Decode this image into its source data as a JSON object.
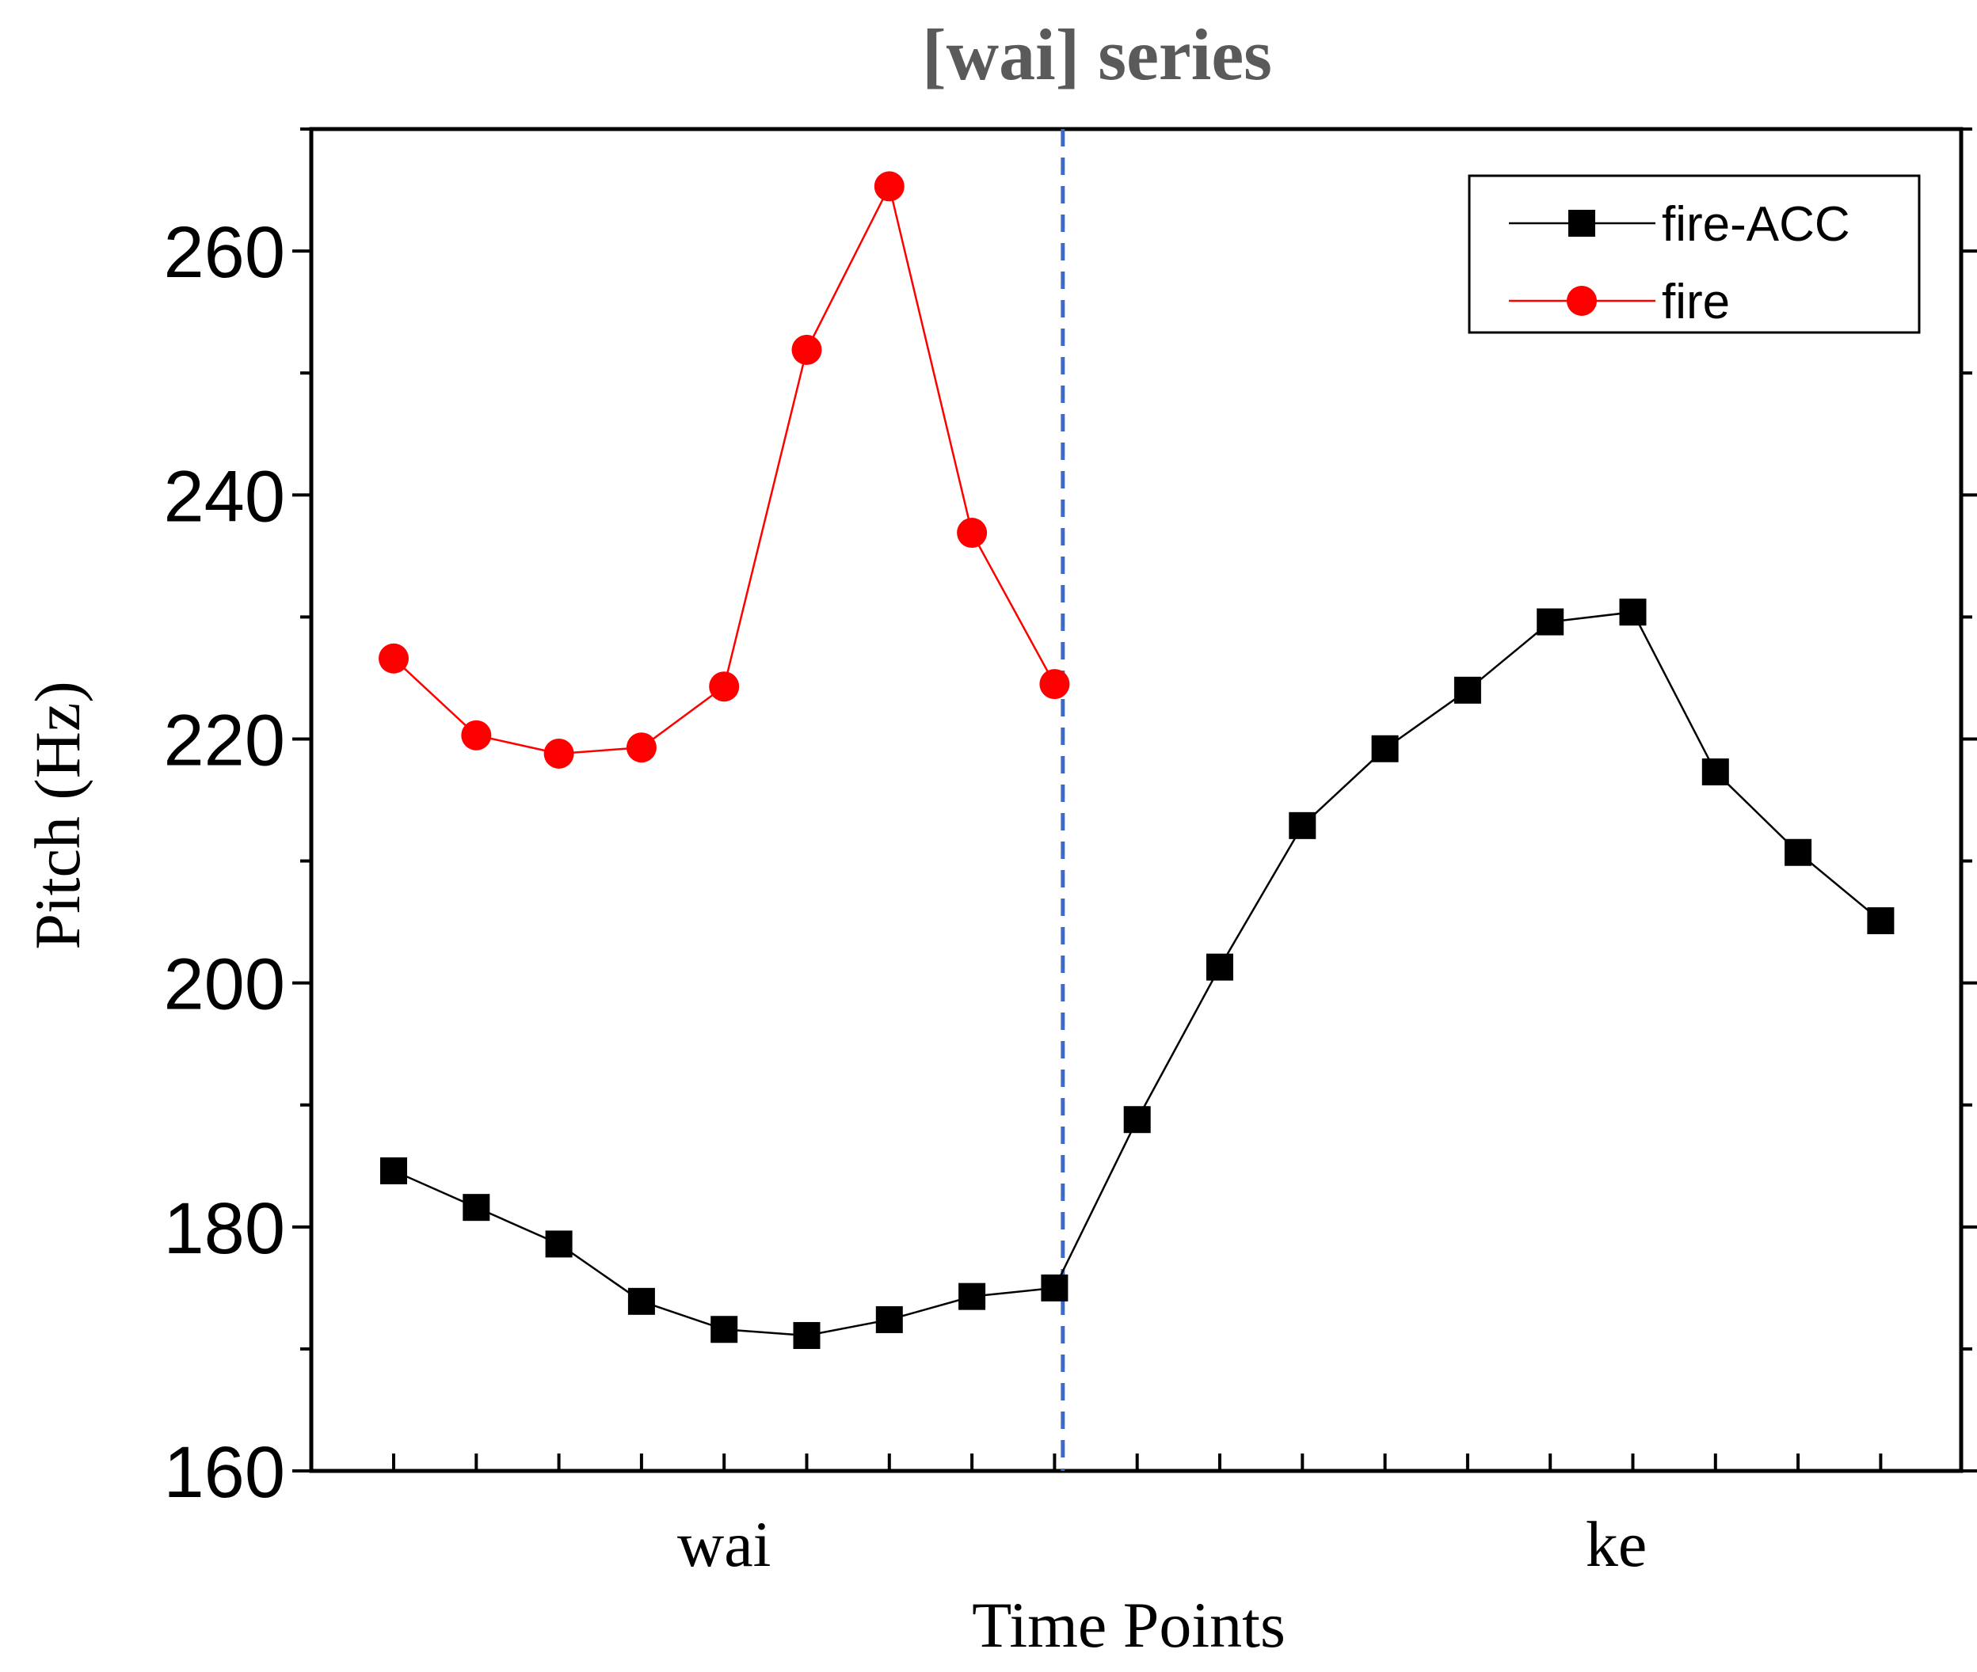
{
  "chart_data": {
    "type": "line",
    "title": "[wai] series",
    "xlabel": "Time Points",
    "ylabel": "Pitch (Hz)",
    "ylim": [
      160,
      270
    ],
    "yticks": [
      160,
      180,
      200,
      220,
      240,
      260
    ],
    "x_range": [
      0,
      20
    ],
    "x_categories": [
      {
        "label": "wai",
        "x": 5.0
      },
      {
        "label": "ke",
        "x": 15.8
      }
    ],
    "divider_x": 9.1,
    "grid": false,
    "legend_position": "top-right",
    "series": [
      {
        "name": "fire-ACC",
        "color": "#000000",
        "marker": "square",
        "x": [
          1,
          2,
          3,
          4,
          5,
          6,
          7,
          8,
          9,
          10,
          11,
          12,
          13,
          14,
          15,
          16,
          17,
          18,
          19
        ],
        "values": [
          184.6,
          181.6,
          178.6,
          173.9,
          171.6,
          171.1,
          172.4,
          174.3,
          175.0,
          188.8,
          201.3,
          212.9,
          219.2,
          224.0,
          229.6,
          230.4,
          217.3,
          210.7,
          205.1
        ]
      },
      {
        "name": "fire",
        "color": "#ff0000",
        "marker": "circle",
        "x": [
          1,
          2,
          3,
          4,
          5,
          6,
          7,
          8,
          9
        ],
        "values": [
          226.6,
          220.3,
          218.8,
          219.3,
          224.3,
          251.9,
          265.3,
          236.9,
          224.5
        ]
      }
    ]
  }
}
